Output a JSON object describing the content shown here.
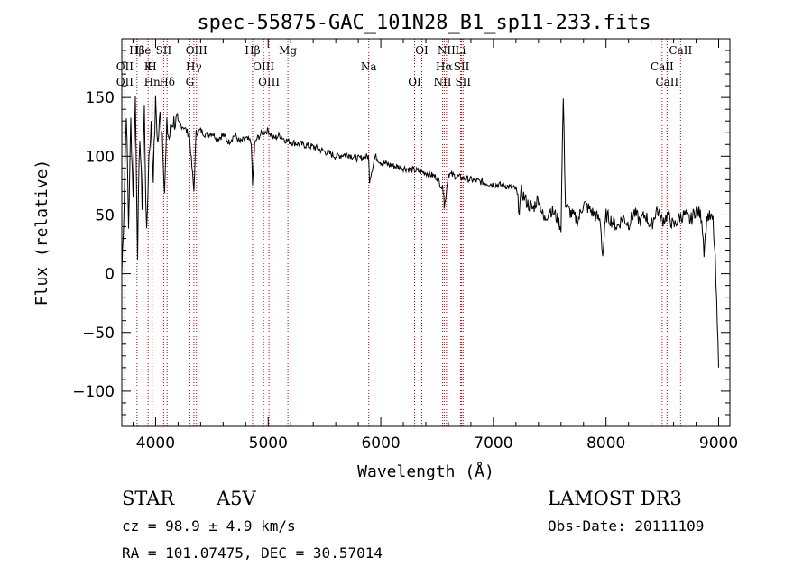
{
  "chart_data": {
    "type": "line",
    "title": "spec-55875-GAC_101N28_B1_sp11-233.fits",
    "xlabel": "Wavelength (Å)",
    "ylabel": "Flux (relative)",
    "xlim": [
      3700,
      9100
    ],
    "ylim": [
      -130,
      200
    ],
    "xticks": [
      4000,
      5000,
      6000,
      7000,
      8000,
      9000
    ],
    "yticks": [
      -100,
      -50,
      0,
      50,
      100,
      150
    ],
    "ytick_labels": [
      "−100",
      "−50",
      "0",
      "50",
      "100",
      "150"
    ],
    "series": [
      {
        "name": "flux",
        "x": [
          3700,
          3720,
          3740,
          3760,
          3780,
          3800,
          3820,
          3840,
          3860,
          3880,
          3900,
          3920,
          3940,
          3960,
          3980,
          4000,
          4020,
          4040,
          4060,
          4080,
          4100,
          4120,
          4150,
          4200,
          4250,
          4300,
          4340,
          4360,
          4400,
          4450,
          4500,
          4550,
          4600,
          4650,
          4700,
          4750,
          4800,
          4850,
          4861,
          4880,
          4900,
          4950,
          5000,
          5050,
          5100,
          5150,
          5200,
          5300,
          5400,
          5500,
          5600,
          5700,
          5800,
          5890,
          5900,
          5950,
          6000,
          6100,
          6200,
          6300,
          6400,
          6500,
          6560,
          6563,
          6600,
          6700,
          6800,
          6900,
          7000,
          7100,
          7200,
          7230,
          7250,
          7300,
          7350,
          7400,
          7450,
          7500,
          7550,
          7600,
          7620,
          7640,
          7660,
          7700,
          7750,
          7800,
          7850,
          7900,
          7950,
          7970,
          8000,
          8050,
          8100,
          8150,
          8200,
          8250,
          8300,
          8350,
          8400,
          8450,
          8500,
          8550,
          8600,
          8650,
          8700,
          8750,
          8800,
          8850,
          8870,
          8900,
          8950,
          8970,
          9000
        ],
        "y": [
          0,
          60,
          140,
          40,
          130,
          70,
          150,
          20,
          120,
          60,
          140,
          30,
          100,
          125,
          85,
          145,
          110,
          135,
          120,
          70,
          125,
          115,
          130,
          128,
          125,
          118,
          70,
          120,
          122,
          118,
          120,
          115,
          118,
          112,
          118,
          112,
          115,
          112,
          75,
          110,
          115,
          120,
          122,
          115,
          118,
          114,
          112,
          110,
          108,
          104,
          100,
          102,
          98,
          100,
          80,
          100,
          95,
          92,
          90,
          88,
          86,
          82,
          70,
          55,
          85,
          82,
          80,
          78,
          76,
          75,
          72,
          55,
          70,
          60,
          55,
          65,
          45,
          55,
          50,
          40,
          150,
          60,
          55,
          50,
          45,
          60,
          55,
          50,
          45,
          15,
          50,
          45,
          40,
          48,
          42,
          52,
          45,
          50,
          40,
          55,
          45,
          50,
          40,
          48,
          50,
          45,
          55,
          48,
          20,
          50,
          45,
          10,
          -80
        ]
      }
    ],
    "spectral_lines": [
      {
        "label": "Hβ",
        "x": 3835
      },
      {
        "label": "OII",
        "x": 3727
      },
      {
        "label": "OII",
        "x": 3727
      },
      {
        "label": "He",
        "x": 3889
      },
      {
        "label": "K",
        "x": 3934
      },
      {
        "label": "Hn",
        "x": 3970
      },
      {
        "label": "SII",
        "x": 4072
      },
      {
        "label": "H",
        "x": 3968
      },
      {
        "label": "Hδ",
        "x": 4102
      },
      {
        "label": "OIII",
        "x": 4363
      },
      {
        "label": "Hγ",
        "x": 4340
      },
      {
        "label": "G",
        "x": 4304
      },
      {
        "label": "Hβ",
        "x": 4861
      },
      {
        "label": "OIII",
        "x": 4959
      },
      {
        "label": "OIII",
        "x": 5007
      },
      {
        "label": "Mg",
        "x": 5175
      },
      {
        "label": "Na",
        "x": 5893
      },
      {
        "label": "OI",
        "x": 6300
      },
      {
        "label": "OI",
        "x": 6364
      },
      {
        "label": "Hα",
        "x": 6563
      },
      {
        "label": "NII",
        "x": 6548
      },
      {
        "label": "NII",
        "x": 6583
      },
      {
        "label": "SII",
        "x": 6717
      },
      {
        "label": "SII",
        "x": 6731
      },
      {
        "label": "Li",
        "x": 6708
      },
      {
        "label": "CaII",
        "x": 8498
      },
      {
        "label": "CaII",
        "x": 8542
      },
      {
        "label": "CaII",
        "x": 8662
      }
    ]
  },
  "info": {
    "object_class": "STAR",
    "subclass": "A5V",
    "survey": "LAMOST DR3",
    "redshift": "cz = 98.9 ± 4.9 km/s",
    "obs_date": "Obs-Date: 20111109",
    "coords": "RA = 101.07475, DEC =  30.57014"
  },
  "colors": {
    "spectrum": "#000000",
    "line_marker": "#cc0000"
  }
}
